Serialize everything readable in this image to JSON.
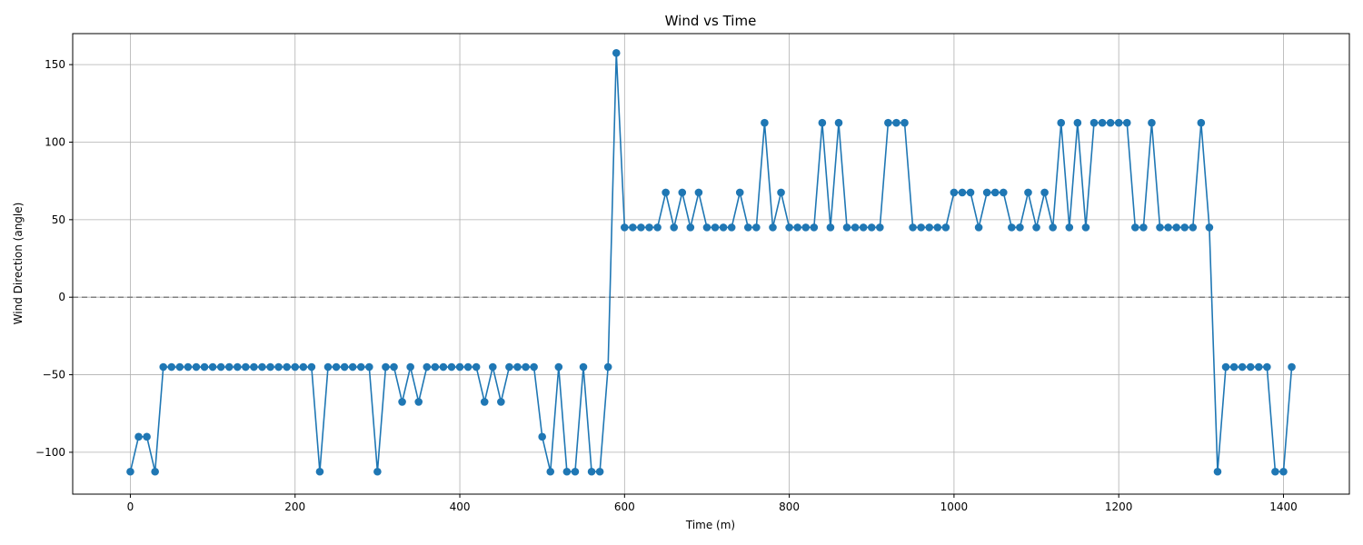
{
  "chart_data": {
    "type": "line",
    "title": "Wind vs Time",
    "xlabel": "Time (m)",
    "ylabel": "Wind Direction (angle)",
    "xlim": [
      -70,
      1480
    ],
    "ylim": [
      -127,
      170
    ],
    "xticks": [
      0,
      200,
      400,
      600,
      800,
      1000,
      1200,
      1400
    ],
    "yticks": [
      -100,
      -50,
      0,
      50,
      100,
      150
    ],
    "grid": true,
    "reference_line": {
      "y": 0,
      "style": "dashed",
      "color": "#808080"
    },
    "series": [
      {
        "color": "#1f77b4",
        "marker": "circle",
        "x": [
          0,
          10,
          20,
          30,
          40,
          50,
          60,
          70,
          80,
          90,
          100,
          110,
          120,
          130,
          140,
          150,
          160,
          170,
          180,
          190,
          200,
          210,
          220,
          230,
          240,
          250,
          260,
          270,
          280,
          290,
          300,
          310,
          320,
          330,
          340,
          350,
          360,
          370,
          380,
          390,
          400,
          410,
          420,
          430,
          440,
          450,
          460,
          470,
          480,
          490,
          500,
          510,
          520,
          530,
          540,
          550,
          560,
          570,
          580,
          590,
          600,
          610,
          620,
          630,
          640,
          650,
          660,
          670,
          680,
          690,
          700,
          710,
          720,
          730,
          740,
          750,
          760,
          770,
          780,
          790,
          800,
          810,
          820,
          830,
          840,
          850,
          860,
          870,
          880,
          890,
          900,
          910,
          920,
          930,
          940,
          950,
          960,
          970,
          980,
          990,
          1000,
          1010,
          1020,
          1030,
          1040,
          1050,
          1060,
          1070,
          1080,
          1090,
          1100,
          1110,
          1120,
          1130,
          1140,
          1150,
          1160,
          1170,
          1180,
          1190,
          1200,
          1210,
          1220,
          1230,
          1240,
          1250,
          1260,
          1270,
          1280,
          1290,
          1300,
          1310,
          1320,
          1330,
          1340,
          1350,
          1360,
          1370,
          1380,
          1390,
          1400,
          1410
        ],
        "y": [
          -112.5,
          -90,
          -90,
          -112.5,
          -45,
          -45,
          -45,
          -45,
          -45,
          -45,
          -45,
          -45,
          -45,
          -45,
          -45,
          -45,
          -45,
          -45,
          -45,
          -45,
          -45,
          -45,
          -45,
          -112.5,
          -45,
          -45,
          -45,
          -45,
          -45,
          -45,
          -112.5,
          -45,
          -45,
          -67.5,
          -45,
          -67.5,
          -45,
          -45,
          -45,
          -45,
          -45,
          -45,
          -45,
          -67.5,
          -45,
          -67.5,
          -45,
          -45,
          -45,
          -45,
          -90,
          -112.5,
          -45,
          -112.5,
          -112.5,
          -45,
          -112.5,
          -112.5,
          -45,
          157.5,
          45,
          45,
          45,
          45,
          45,
          67.5,
          45,
          67.5,
          45,
          67.5,
          45,
          45,
          45,
          45,
          67.5,
          45,
          45,
          112.5,
          45,
          67.5,
          45,
          45,
          45,
          45,
          112.5,
          45,
          112.5,
          45,
          45,
          45,
          45,
          45,
          112.5,
          112.5,
          112.5,
          45,
          45,
          45,
          45,
          45,
          67.5,
          67.5,
          67.5,
          45,
          67.5,
          67.5,
          67.5,
          45,
          45,
          67.5,
          45,
          67.5,
          45,
          112.5,
          45,
          112.5,
          45,
          112.5,
          112.5,
          112.5,
          112.5,
          112.5,
          45,
          45,
          112.5,
          45,
          45,
          45,
          45,
          45,
          112.5,
          45,
          -112.5,
          -45,
          -45,
          -45,
          -45,
          -45,
          -45,
          -112.5,
          -112.5,
          -45
        ]
      }
    ]
  }
}
